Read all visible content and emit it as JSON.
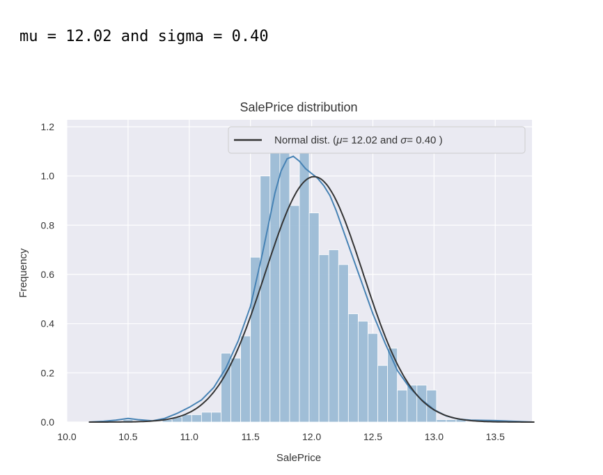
{
  "output_line": "mu = 12.02 and sigma = 0.40",
  "chart_data": {
    "type": "histogram",
    "title": "SalePrice distribution",
    "xlabel": "SalePrice",
    "ylabel": "Frequency",
    "xlim": [
      10.0,
      13.8
    ],
    "ylim": [
      0.0,
      1.2
    ],
    "xticks": [
      10.0,
      10.5,
      11.0,
      11.5,
      12.0,
      12.5,
      13.0,
      13.5
    ],
    "yticks": [
      0.0,
      0.2,
      0.4,
      0.6,
      0.8,
      1.0,
      1.2
    ],
    "xtick_labels": [
      "10.0",
      "10.5",
      "11.0",
      "11.5",
      "12.0",
      "12.5",
      "13.0",
      "13.5"
    ],
    "ytick_labels": [
      "0.0",
      "0.2",
      "0.4",
      "0.6",
      "0.8",
      "1.0",
      "1.2"
    ],
    "grid": true,
    "legend_position": "top-right",
    "histogram": {
      "color": "#9dbcd6",
      "bin_edges": [
        10.46,
        10.54,
        10.62,
        10.7,
        10.78,
        10.86,
        10.94,
        11.02,
        11.1,
        11.18,
        11.26,
        11.34,
        11.42,
        11.5,
        11.58,
        11.66,
        11.74,
        11.82,
        11.9,
        11.98,
        12.06,
        12.14,
        12.22,
        12.3,
        12.38,
        12.46,
        12.54,
        12.62,
        12.7,
        12.78,
        12.86,
        12.94,
        13.02,
        13.1,
        13.18,
        13.26,
        13.34,
        13.42,
        13.5,
        13.58
      ],
      "densities": [
        0.01,
        0.0,
        0.0,
        0.0,
        0.01,
        0.02,
        0.03,
        0.03,
        0.04,
        0.04,
        0.28,
        0.26,
        0.35,
        0.67,
        1.0,
        1.1,
        1.1,
        0.88,
        1.18,
        0.85,
        0.68,
        0.7,
        0.64,
        0.44,
        0.41,
        0.36,
        0.23,
        0.3,
        0.13,
        0.15,
        0.15,
        0.13,
        0.01,
        0.01,
        0.01,
        0.0,
        0.0,
        0.0,
        0.0
      ]
    },
    "series": [
      {
        "name": "KDE",
        "type": "line",
        "color": "#4682b4",
        "x": [
          10.18,
          10.3,
          10.4,
          10.5,
          10.58,
          10.7,
          10.8,
          10.9,
          11.0,
          11.1,
          11.2,
          11.3,
          11.4,
          11.5,
          11.6,
          11.65,
          11.7,
          11.75,
          11.8,
          11.85,
          11.9,
          11.95,
          12.0,
          12.05,
          12.1,
          12.15,
          12.2,
          12.3,
          12.4,
          12.5,
          12.6,
          12.7,
          12.8,
          12.9,
          13.0,
          13.1,
          13.2,
          13.3,
          13.5,
          13.7,
          13.82
        ],
        "y": [
          0.0,
          0.003,
          0.008,
          0.015,
          0.01,
          0.005,
          0.015,
          0.035,
          0.06,
          0.09,
          0.14,
          0.22,
          0.33,
          0.47,
          0.69,
          0.81,
          0.93,
          1.02,
          1.07,
          1.08,
          1.06,
          1.03,
          1.01,
          0.99,
          0.96,
          0.92,
          0.86,
          0.72,
          0.58,
          0.44,
          0.32,
          0.21,
          0.14,
          0.09,
          0.05,
          0.025,
          0.012,
          0.008,
          0.006,
          0.002,
          0.0
        ]
      },
      {
        "name": "Normal dist. (μ= 12.02 and σ= 0.40 )",
        "type": "line",
        "color": "#333333",
        "mu": 12.02,
        "sigma": 0.4,
        "x_range": [
          10.18,
          13.82
        ]
      }
    ],
    "legend": {
      "normal_prefix": "Normal dist. (",
      "mu_symbol": "μ",
      "mid_text": "=  12.02 and ",
      "sigma_symbol": "σ",
      "suffix_text": "=  0.40 )"
    }
  }
}
